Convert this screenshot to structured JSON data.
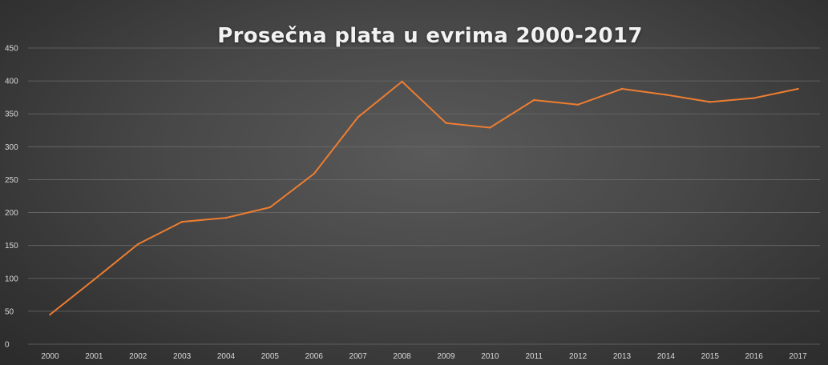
{
  "chart_data": {
    "type": "line",
    "title": "Prosečna plata u evrima 2000-2017",
    "xlabel": "",
    "ylabel": "",
    "categories": [
      "2000",
      "2001",
      "2002",
      "2003",
      "2004",
      "2005",
      "2006",
      "2007",
      "2008",
      "2009",
      "2010",
      "2011",
      "2012",
      "2013",
      "2014",
      "2015",
      "2016",
      "2017"
    ],
    "series": [
      {
        "values": [
          45,
          98,
          152,
          186,
          192,
          208,
          259,
          345,
          399,
          336,
          329,
          371,
          364,
          388,
          379,
          368,
          374,
          388
        ]
      }
    ],
    "ylim": [
      0,
      450
    ],
    "yticks": [
      0,
      50,
      100,
      150,
      200,
      250,
      300,
      350,
      400,
      450
    ],
    "grid": "horizontal",
    "legend": "none",
    "colors": {
      "line": "#ed7d31",
      "gridline": "#6a6a6a",
      "text": "#d9d9d9"
    }
  }
}
